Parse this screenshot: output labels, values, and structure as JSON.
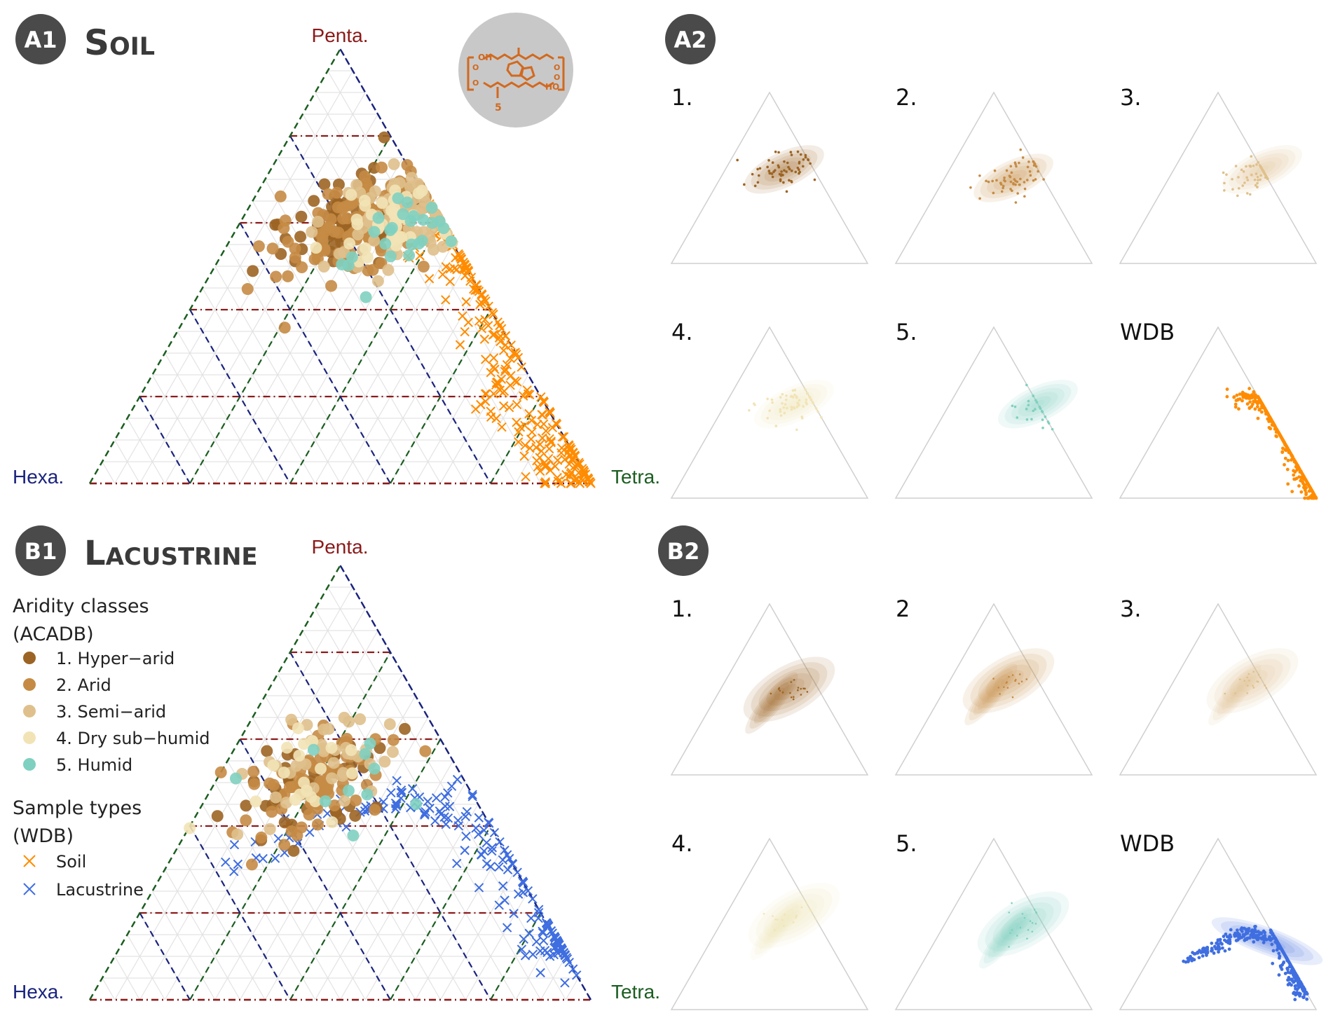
{
  "colors": {
    "penta": "#8b1a1a",
    "hexa": "#1a237e",
    "tetra": "#1b5e20",
    "badge": "#4a4a4a",
    "hyper_arid": "#9c6424",
    "arid": "#c58b45",
    "semi_arid": "#dfc08c",
    "dry_sub_humid": "#f2e3b6",
    "humid": "#7fd0c0",
    "soil": "#ff8c00",
    "lacustrine": "#3f6ee0"
  },
  "panels": {
    "a1": {
      "badge": "A1",
      "title": "Soil"
    },
    "a2": {
      "badge": "A2"
    },
    "b1": {
      "badge": "B1",
      "title": "Lacustrine"
    },
    "b2": {
      "badge": "B2"
    }
  },
  "molecule_icon": {
    "name": "brGDGT-structure-icon",
    "labels": [
      "OH",
      "HO",
      "5",
      "O",
      "O",
      "O",
      "O"
    ]
  },
  "vertex_labels": {
    "top": "Penta.",
    "left": "Hexa.",
    "right": "Tetra."
  },
  "legend": {
    "aridity_title_1": "Aridity classes",
    "aridity_title_2": "(ACADB)",
    "aridity": [
      {
        "label": "1. Hyper−arid",
        "color": "#9c6424"
      },
      {
        "label": "2. Arid",
        "color": "#c58b45"
      },
      {
        "label": "3. Semi−arid",
        "color": "#dfc08c"
      },
      {
        "label": "4. Dry sub−humid",
        "color": "#f2e3b6"
      },
      {
        "label": "5. Humid",
        "color": "#7fd0c0"
      }
    ],
    "types_title_1": "Sample types",
    "types_title_2": "(WDB)",
    "types": [
      {
        "label": "Soil",
        "color": "#ff8c00"
      },
      {
        "label": "Lacustrine",
        "color": "#3f6ee0"
      }
    ]
  },
  "a2_labels": [
    "1.",
    "2.",
    "3.",
    "4.",
    "5.",
    "WDB"
  ],
  "b2_labels": [
    "1.",
    "2",
    "3.",
    "4.",
    "5.",
    "WDB"
  ],
  "chart_data": [
    {
      "type": "scatter",
      "panel": "A1",
      "subtitle": "Soil",
      "axes": {
        "top": "Penta.",
        "left": "Hexa.",
        "right": "Tetra."
      },
      "grid": true,
      "series": [
        {
          "name": "1. Hyper−arid",
          "cluster": {
            "tetra": 0.22,
            "penta": 0.6,
            "hexa": 0.18
          },
          "n": 90
        },
        {
          "name": "2. Arid",
          "cluster": {
            "tetra": 0.25,
            "penta": 0.6,
            "hexa": 0.15
          },
          "n": 120
        },
        {
          "name": "3. Semi−arid",
          "cluster": {
            "tetra": 0.3,
            "penta": 0.6,
            "hexa": 0.1
          },
          "n": 70
        },
        {
          "name": "4. Dry sub−humid",
          "cluster": {
            "tetra": 0.3,
            "penta": 0.6,
            "hexa": 0.1
          },
          "n": 40
        },
        {
          "name": "5. Humid",
          "cluster": {
            "tetra": 0.35,
            "penta": 0.6,
            "hexa": 0.05
          },
          "n": 25
        },
        {
          "name": "Soil",
          "trend": [
            [
              0.3,
              0.65
            ],
            [
              0.45,
              0.55
            ],
            [
              0.6,
              0.4
            ],
            [
              0.75,
              0.2
            ],
            [
              0.9,
              0.06
            ],
            [
              1.0,
              0.0
            ]
          ],
          "n": 260
        }
      ]
    },
    {
      "type": "scatter",
      "panel": "B1",
      "subtitle": "Lacustrine",
      "axes": {
        "top": "Penta.",
        "left": "Hexa.",
        "right": "Tetra."
      },
      "grid": true,
      "series": [
        {
          "name": "1. Hyper−arid",
          "cluster": {
            "tetra": 0.2,
            "penta": 0.5,
            "hexa": 0.3
          },
          "n": 50
        },
        {
          "name": "2. Arid",
          "cluster": {
            "tetra": 0.2,
            "penta": 0.5,
            "hexa": 0.3
          },
          "n": 70
        },
        {
          "name": "3. Semi−arid",
          "cluster": {
            "tetra": 0.2,
            "penta": 0.55,
            "hexa": 0.25
          },
          "n": 40
        },
        {
          "name": "4. Dry sub−humid",
          "cluster": {
            "tetra": 0.2,
            "penta": 0.5,
            "hexa": 0.3
          },
          "n": 20
        },
        {
          "name": "5. Humid",
          "cluster": {
            "tetra": 0.3,
            "penta": 0.5,
            "hexa": 0.2
          },
          "n": 10
        },
        {
          "name": "Lacustrine",
          "trend": [
            [
              0.12,
              0.3
            ],
            [
              0.3,
              0.45
            ],
            [
              0.5,
              0.45
            ],
            [
              0.7,
              0.3
            ],
            [
              0.85,
              0.15
            ],
            [
              0.9,
              0.1
            ]
          ],
          "n": 180
        }
      ]
    },
    {
      "type": "heatmap",
      "panel": "A2",
      "panels": [
        "1.",
        "2.",
        "3.",
        "4.",
        "5.",
        "WDB"
      ],
      "description_colors": [
        "#9c6424",
        "#c58b45",
        "#dfc08c",
        "#f2e3b6",
        "#7fd0c0",
        "#ff8c00"
      ]
    },
    {
      "type": "heatmap",
      "panel": "B2",
      "panels": [
        "1.",
        "2",
        "3.",
        "4.",
        "5.",
        "WDB"
      ],
      "description_colors": [
        "#9c6424",
        "#c58b45",
        "#dfc08c",
        "#f2e3b6",
        "#7fd0c0",
        "#3f6ee0"
      ]
    }
  ]
}
